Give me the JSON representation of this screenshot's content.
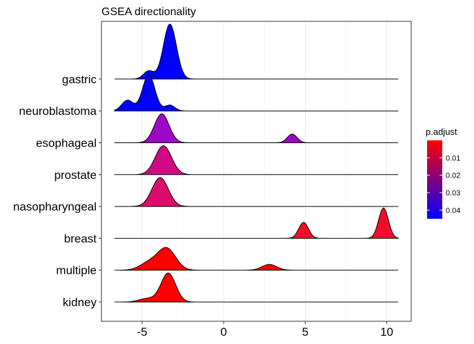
{
  "chart_data": {
    "type": "ridgeline",
    "title": "GSEA directionality",
    "xlabel": "",
    "ylabel": "",
    "xlim": [
      -7.5,
      11.5
    ],
    "x_ticks": [
      -5,
      0,
      5,
      10
    ],
    "x_tick_labels": [
      "-5",
      "0",
      "5",
      "10"
    ],
    "grid": true,
    "legend": {
      "title": "p.adjust",
      "position": "right",
      "type": "colorbar",
      "low_color": "#ff0000",
      "high_color": "#0000ff",
      "range": [
        0.0,
        0.045
      ],
      "ticks": [
        0.01,
        0.02,
        0.03,
        0.04
      ],
      "tick_labels": [
        "0.01",
        "0.02",
        "0.03",
        "0.04"
      ]
    },
    "series": [
      {
        "name": "kidney",
        "p_adjust": 0.0,
        "color": "#ff0000",
        "peaks": [
          {
            "mu": -3.4,
            "sigma": 0.45,
            "h": 1.0
          },
          {
            "mu": -4.7,
            "sigma": 0.5,
            "h": 0.12
          }
        ]
      },
      {
        "name": "multiple",
        "p_adjust": 0.0,
        "color": "#ff0000",
        "peaks": [
          {
            "mu": -3.5,
            "sigma": 0.55,
            "h": 0.75
          },
          {
            "mu": -4.6,
            "sigma": 0.55,
            "h": 0.25
          },
          {
            "mu": 2.8,
            "sigma": 0.45,
            "h": 0.2
          }
        ]
      },
      {
        "name": "breast",
        "p_adjust": 0.003,
        "color": "#f40d2b",
        "peaks": [
          {
            "mu": 4.9,
            "sigma": 0.3,
            "h": 0.55
          },
          {
            "mu": 9.8,
            "sigma": 0.3,
            "h": 1.05
          }
        ]
      },
      {
        "name": "nasopharyngeal",
        "p_adjust": 0.015,
        "color": "#dc0c6a",
        "peaks": [
          {
            "mu": -3.9,
            "sigma": 0.5,
            "h": 1.0
          }
        ]
      },
      {
        "name": "prostate",
        "p_adjust": 0.018,
        "color": "#d00883",
        "peaks": [
          {
            "mu": -3.7,
            "sigma": 0.5,
            "h": 1.0
          }
        ]
      },
      {
        "name": "esophageal",
        "p_adjust": 0.029,
        "color": "#9d08c6",
        "peaks": [
          {
            "mu": -3.8,
            "sigma": 0.45,
            "h": 1.0
          },
          {
            "mu": 4.2,
            "sigma": 0.3,
            "h": 0.3
          }
        ]
      },
      {
        "name": "neuroblastoma",
        "p_adjust": 0.045,
        "color": "#0000ff",
        "peaks": [
          {
            "mu": -4.6,
            "sigma": 0.38,
            "h": 1.25
          },
          {
            "mu": -5.9,
            "sigma": 0.35,
            "h": 0.37
          },
          {
            "mu": -3.3,
            "sigma": 0.3,
            "h": 0.2
          }
        ]
      },
      {
        "name": "gastric",
        "p_adjust": 0.045,
        "color": "#0000ff",
        "peaks": [
          {
            "mu": -3.3,
            "sigma": 0.4,
            "h": 1.9
          },
          {
            "mu": -4.6,
            "sigma": 0.32,
            "h": 0.28
          }
        ]
      }
    ]
  }
}
